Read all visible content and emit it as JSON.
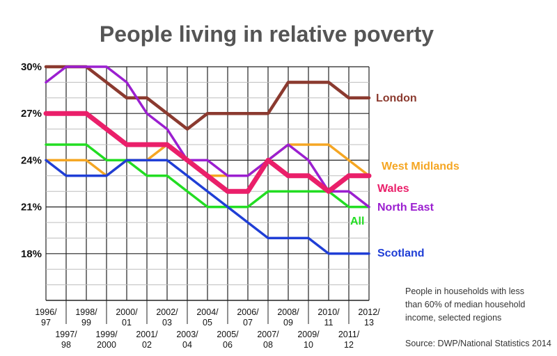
{
  "chart_data": {
    "type": "line",
    "title": "People living in relative poverty",
    "xlabel": "",
    "ylabel": "",
    "ylim": [
      15,
      30
    ],
    "ytick_values": [
      18,
      21,
      24,
      27,
      30
    ],
    "ytick_labels": [
      "18%",
      "21%",
      "24%",
      "27%",
      "30%"
    ],
    "grid": true,
    "categories": [
      "1996/97",
      "1997/98",
      "1998/99",
      "1999/2000",
      "2000/01",
      "2001/02",
      "2002/03",
      "2003/04",
      "2004/05",
      "2005/06",
      "2006/07",
      "2007/08",
      "2008/09",
      "2009/10",
      "2010/11",
      "2011/12",
      "2012/13"
    ],
    "category_labels": [
      [
        "1996/",
        "97"
      ],
      [
        "1997/",
        "98"
      ],
      [
        "1998/",
        "99"
      ],
      [
        "1999/",
        "2000"
      ],
      [
        "2000/",
        "01"
      ],
      [
        "2001/",
        "02"
      ],
      [
        "2002/",
        "03"
      ],
      [
        "2003/",
        "04"
      ],
      [
        "2004/",
        "05"
      ],
      [
        "2005/",
        "06"
      ],
      [
        "2006/",
        "07"
      ],
      [
        "2007/",
        "08"
      ],
      [
        "2008/",
        "09"
      ],
      [
        "2009/",
        "10"
      ],
      [
        "2010/",
        "11"
      ],
      [
        "2011/",
        "12"
      ],
      [
        "2012/",
        "13"
      ]
    ],
    "series": [
      {
        "name": "London",
        "color": "#8b3a2f",
        "values": [
          30,
          30,
          30,
          29,
          28,
          28,
          27,
          26,
          27,
          27,
          27,
          27,
          29,
          29,
          29,
          28,
          28
        ]
      },
      {
        "name": "West Midlands",
        "color": "#f5a623",
        "values": [
          24,
          24,
          24,
          23,
          24,
          24,
          25,
          24,
          23,
          23,
          23,
          24,
          25,
          25,
          25,
          24,
          23
        ]
      },
      {
        "name": "All",
        "color": "#22dd22",
        "values": [
          25,
          25,
          25,
          24,
          24,
          23,
          23,
          22,
          21,
          21,
          21,
          22,
          22,
          22,
          22,
          21,
          21
        ]
      },
      {
        "name": "Scotland",
        "color": "#1f3ed6",
        "values": [
          24,
          23,
          23,
          23,
          24,
          24,
          24,
          23,
          22,
          21,
          20,
          19,
          19,
          19,
          18,
          18,
          18
        ]
      },
      {
        "name": "North East",
        "color": "#9b1fd0",
        "values": [
          29,
          30,
          30,
          30,
          29,
          27,
          26,
          24,
          24,
          23,
          23,
          24,
          25,
          24,
          22,
          22,
          21
        ]
      },
      {
        "name": "Wales",
        "color": "#ea1f6a",
        "values": [
          27,
          27,
          27,
          26,
          25,
          25,
          25,
          24,
          23,
          22,
          22,
          24,
          23,
          23,
          22,
          23,
          23
        ]
      }
    ],
    "legend": "inline-right",
    "annotation_lines": [
      "People in households with less",
      "than 60% of median household",
      "income, selected regions"
    ],
    "source": "Source: DWP/National Statistics 2014"
  }
}
